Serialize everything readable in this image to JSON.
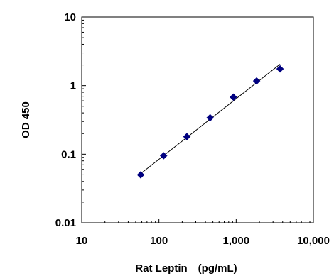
{
  "chart_data": {
    "type": "scatter",
    "xlabel": "Rat Leptin　(pg/mL)",
    "ylabel": "OD 450",
    "x_scale": "log",
    "y_scale": "log",
    "xlim": [
      10,
      10000
    ],
    "ylim": [
      0.01,
      10
    ],
    "x_ticks": [
      10,
      100,
      1000,
      10000
    ],
    "x_tick_labels": [
      "10",
      "100",
      "1,000",
      "10,000"
    ],
    "y_ticks": [
      0.01,
      0.1,
      1,
      10
    ],
    "y_tick_labels": [
      "0.01",
      "0.1",
      "1",
      "10"
    ],
    "grid": false,
    "series": [
      {
        "marker": "diamond",
        "color": "#000080",
        "x": [
          58,
          115,
          230,
          460,
          920,
          1840,
          3700
        ],
        "y": [
          0.05,
          0.095,
          0.18,
          0.34,
          0.68,
          1.17,
          1.75
        ]
      }
    ],
    "fit_line": {
      "color": "#000000",
      "x": [
        58,
        3700
      ],
      "y": [
        0.052,
        2.05
      ]
    }
  }
}
